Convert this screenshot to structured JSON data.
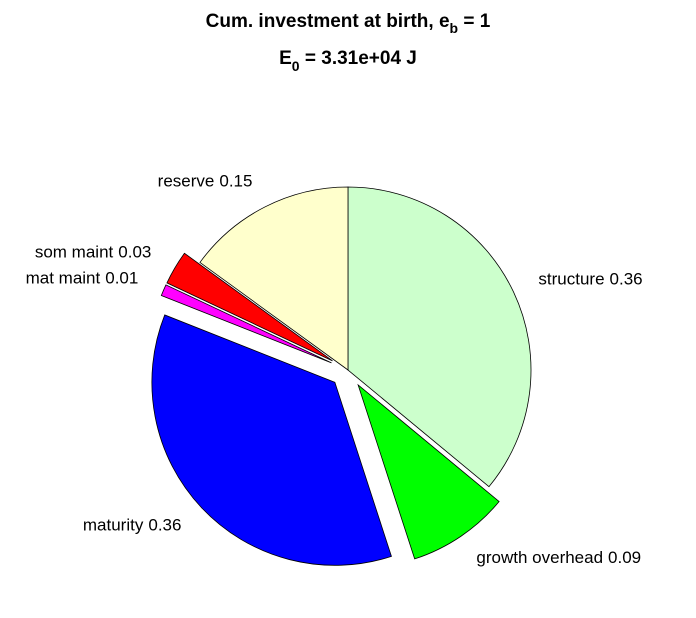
{
  "chart_data": {
    "type": "pie",
    "title": {
      "text": "Cum. investment at birth, e",
      "sub": "b",
      "tail": " = 1"
    },
    "subtitle": {
      "text": "E",
      "sub": "0",
      "tail": " = 3.31e+04 J"
    },
    "categories": [
      "structure",
      "growth overhead",
      "maturity",
      "mat maint",
      "som maint",
      "reserve"
    ],
    "values": [
      0.36,
      0.09,
      0.36,
      0.01,
      0.03,
      0.15
    ],
    "colors": [
      "#ccffcc",
      "#00ff00",
      "#0000ff",
      "#ff00ff",
      "#ff0000",
      "#ffffcc"
    ],
    "explode": [
      0,
      1,
      1,
      1,
      1,
      0
    ]
  }
}
